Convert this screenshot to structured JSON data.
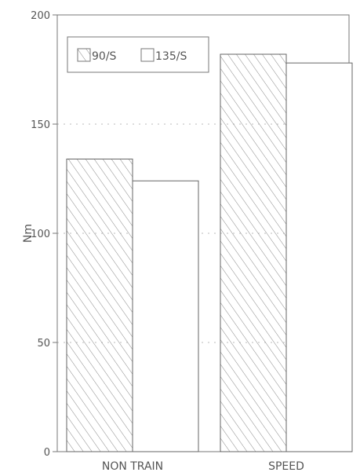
{
  "chart_data": {
    "type": "bar",
    "title": "",
    "xlabel": "",
    "ylabel": "Nm",
    "ylim": [
      0,
      200
    ],
    "yticks": [
      0,
      50,
      100,
      150,
      200
    ],
    "categories": [
      "NON TRAIN",
      "SPEED"
    ],
    "series": [
      {
        "name": "90/S",
        "values": [
          134,
          182
        ],
        "pattern": "hatch"
      },
      {
        "name": "135/S",
        "values": [
          124,
          178
        ],
        "pattern": "solid"
      }
    ],
    "grid": "y-dotted",
    "legend_position": "top-left",
    "colors": {
      "stroke": "#666666",
      "fill": "#ffffff",
      "text": "#555555"
    }
  }
}
